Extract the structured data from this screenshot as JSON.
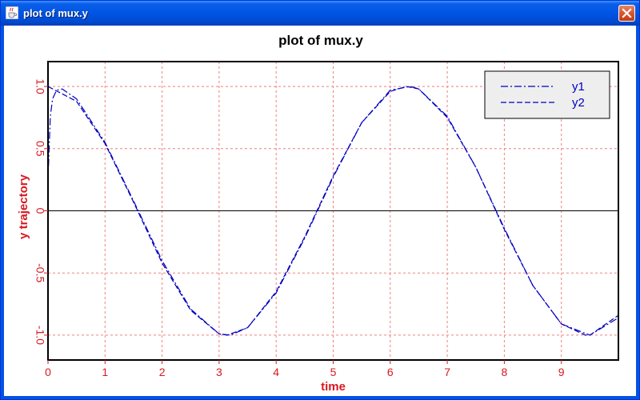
{
  "window": {
    "title": "plot of mux.y",
    "app_icon": "java-cup-icon",
    "close_icon": "close-icon"
  },
  "colors": {
    "axis_text": "#d71920",
    "grid": "#f08080",
    "series": "#0000c0",
    "legend_bg": "#eeeeee"
  },
  "chart_data": {
    "type": "line",
    "title": "plot of mux.y",
    "xlabel": "time",
    "ylabel": "y trajectory",
    "xlim": [
      0,
      10
    ],
    "ylim": [
      -1.2,
      1.2
    ],
    "xticks": [
      "0",
      "1",
      "2",
      "3",
      "4",
      "5",
      "6",
      "7",
      "8",
      "9"
    ],
    "yticks": [
      "1.0",
      "0.5",
      "0",
      "-0.5",
      "-1.0"
    ],
    "grid": true,
    "legend": "top-right",
    "series": [
      {
        "name": "y1",
        "style": "dash-dot",
        "x": [
          0,
          0.04,
          0.08,
          0.15,
          0.25,
          0.5,
          1.0,
          1.5,
          2.0,
          2.5,
          3.0,
          3.2,
          3.5,
          4.0,
          4.5,
          5.0,
          5.5,
          6.0,
          6.35,
          6.5,
          7.0,
          7.5,
          8.0,
          8.5,
          9.0,
          9.5,
          10.0
        ],
        "y": [
          0.25,
          0.76,
          0.9,
          0.97,
          0.98,
          0.9,
          0.55,
          0.08,
          -0.4,
          -0.79,
          -0.99,
          -1.0,
          -0.94,
          -0.66,
          -0.22,
          0.27,
          0.71,
          0.97,
          1.0,
          0.98,
          0.76,
          0.35,
          -0.14,
          -0.6,
          -0.91,
          -1.0,
          -0.86
        ]
      },
      {
        "name": "y2",
        "style": "dashed",
        "x": [
          0,
          0.5,
          1.0,
          1.5,
          2.0,
          2.5,
          3.0,
          3.14,
          3.5,
          4.0,
          4.5,
          5.0,
          5.5,
          6.0,
          6.28,
          6.5,
          7.0,
          7.5,
          8.0,
          8.5,
          9.0,
          9.42,
          9.5,
          10.0
        ],
        "y": [
          1.0,
          0.88,
          0.54,
          0.07,
          -0.42,
          -0.8,
          -0.99,
          -1.0,
          -0.94,
          -0.65,
          -0.21,
          0.28,
          0.71,
          0.96,
          1.0,
          0.98,
          0.75,
          0.35,
          -0.15,
          -0.6,
          -0.91,
          -1.0,
          -1.0,
          -0.84
        ]
      }
    ]
  }
}
